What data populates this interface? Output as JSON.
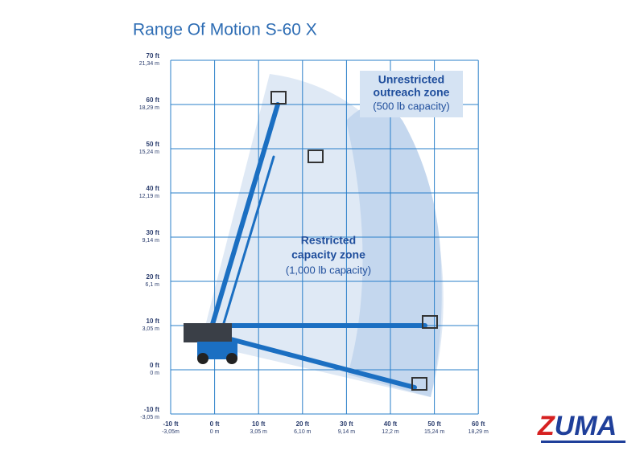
{
  "header": {
    "title": "Range Of Motion S-60 X"
  },
  "y_axis": {
    "labels": [
      {
        "ft": "70 ft",
        "m": "21,34 m"
      },
      {
        "ft": "60 ft",
        "m": "18,29 m"
      },
      {
        "ft": "50 ft",
        "m": "15,24 m"
      },
      {
        "ft": "40 ft",
        "m": "12,19 m"
      },
      {
        "ft": "30 ft",
        "m": "9,14 m"
      },
      {
        "ft": "20 ft",
        "m": "6,1 m"
      },
      {
        "ft": "10 ft",
        "m": "3,05 m"
      },
      {
        "ft": "0 ft",
        "m": "0 m"
      },
      {
        "ft": "-10 ft",
        "m": "-3,05 m"
      }
    ]
  },
  "x_axis": {
    "labels": [
      {
        "ft": "-10 ft",
        "m": "-3,05m"
      },
      {
        "ft": "0 ft",
        "m": "0 m"
      },
      {
        "ft": "10 ft",
        "m": "3,05 m"
      },
      {
        "ft": "20 ft",
        "m": "6,10 m"
      },
      {
        "ft": "30 ft",
        "m": "9,14 m"
      },
      {
        "ft": "40 ft",
        "m": "12,2 m"
      },
      {
        "ft": "50 ft",
        "m": "15,24 m"
      },
      {
        "ft": "60 ft",
        "m": "18,29 m"
      }
    ]
  },
  "zones": {
    "unrestricted": {
      "line1": "Unrestricted",
      "line2": "outreach zone",
      "capacity": "(500 lb capacity)"
    },
    "restricted": {
      "line1": "Restricted",
      "line2": "capacity zone",
      "capacity": "(1,000 lb capacity)"
    }
  },
  "logo": {
    "initial": "Z",
    "rest": "UMA"
  }
}
